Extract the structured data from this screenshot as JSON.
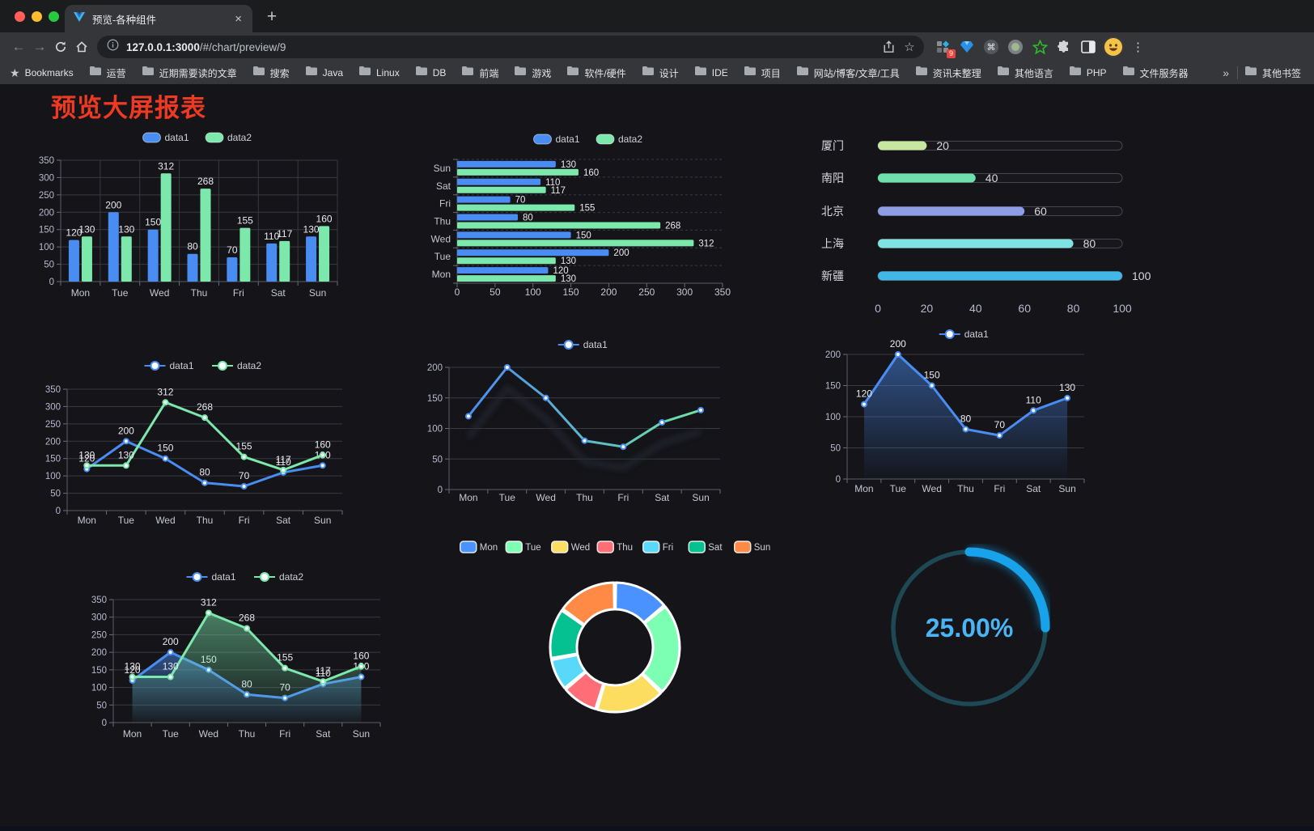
{
  "browser": {
    "tab_title": "预览-各种组件",
    "tab_close": "×",
    "new_tab": "+",
    "back": "←",
    "forward": "→",
    "url_host": "127.0.0.1:3000",
    "url_path": "/#/chart/preview/9",
    "extension_badge": "9",
    "bookmarks_label": "Bookmarks",
    "bookmarks": [
      "运营",
      "近期需要读的文章",
      "搜索",
      "Java",
      "Linux",
      "DB",
      "前端",
      "游戏",
      "软件/硬件",
      "设计",
      "IDE",
      "项目",
      "网站/博客/文章/工具",
      "资讯未整理",
      "其他语言",
      "PHP",
      "文件服务器"
    ],
    "overflow_label": "»",
    "other_bookmarks": "其他书签",
    "menu": "⋮",
    "star": "☆",
    "bookmarks_star": "★"
  },
  "page": {
    "title": "预览大屏报表",
    "title_color": "#ee3a22"
  },
  "chart_data": [
    {
      "id": "c1",
      "type": "bar",
      "orientation": "vertical",
      "categories": [
        "Mon",
        "Tue",
        "Wed",
        "Thu",
        "Fri",
        "Sat",
        "Sun"
      ],
      "series": [
        {
          "name": "data1",
          "color": "#4a8df2",
          "values": [
            120,
            200,
            150,
            80,
            70,
            110,
            130
          ]
        },
        {
          "name": "data2",
          "color": "#7ce8ab",
          "values": [
            130,
            130,
            312,
            268,
            155,
            117,
            160
          ]
        }
      ],
      "ylim": [
        0,
        350
      ],
      "yticks": [
        0,
        50,
        100,
        150,
        200,
        250,
        300,
        350
      ],
      "legend_position": "top",
      "value_labels": true,
      "grid": true
    },
    {
      "id": "c2",
      "type": "bar",
      "orientation": "horizontal",
      "categories": [
        "Mon",
        "Tue",
        "Wed",
        "Thu",
        "Fri",
        "Sat",
        "Sun"
      ],
      "categories_top_to_bottom": [
        "Sun",
        "Sat",
        "Fri",
        "Thu",
        "Wed",
        "Tue",
        "Mon"
      ],
      "series": [
        {
          "name": "data1",
          "color": "#4a8df2",
          "values": [
            120,
            200,
            150,
            80,
            70,
            110,
            130
          ]
        },
        {
          "name": "data2",
          "color": "#7ce8ab",
          "values": [
            130,
            130,
            312,
            268,
            155,
            117,
            160
          ]
        }
      ],
      "xlim": [
        0,
        350
      ],
      "xticks": [
        0,
        50,
        100,
        150,
        200,
        250,
        300,
        350
      ],
      "legend_position": "top",
      "value_labels": true
    },
    {
      "id": "c3",
      "type": "progress-bars",
      "rows": [
        {
          "label": "厦门",
          "value": 20,
          "color": "#c6e7a0"
        },
        {
          "label": "南阳",
          "value": 40,
          "color": "#6fe0ac"
        },
        {
          "label": "北京",
          "value": 60,
          "color": "#8f9ce6"
        },
        {
          "label": "上海",
          "value": 80,
          "color": "#7fe3e3"
        },
        {
          "label": "新疆",
          "value": 100,
          "color": "#41b7e8"
        }
      ],
      "xlim": [
        0,
        100
      ],
      "xticks": [
        0,
        20,
        40,
        60,
        80,
        100
      ]
    },
    {
      "id": "c4",
      "type": "line",
      "categories": [
        "Mon",
        "Tue",
        "Wed",
        "Thu",
        "Fri",
        "Sat",
        "Sun"
      ],
      "series": [
        {
          "name": "data1",
          "color": "#4a8df2",
          "values": [
            120,
            200,
            150,
            80,
            70,
            110,
            130
          ]
        },
        {
          "name": "data2",
          "color": "#7ce8ab",
          "values": [
            130,
            130,
            312,
            268,
            155,
            117,
            160
          ]
        }
      ],
      "ylim": [
        0,
        350
      ],
      "yticks": [
        0,
        50,
        100,
        150,
        200,
        250,
        300,
        350
      ],
      "legend_position": "top",
      "value_labels": true,
      "markers": true
    },
    {
      "id": "c5",
      "type": "line",
      "categories": [
        "Mon",
        "Tue",
        "Wed",
        "Thu",
        "Fri",
        "Sat",
        "Sun"
      ],
      "series": [
        {
          "name": "data1",
          "gradient": [
            "#4a8df2",
            "#6fe3a2"
          ],
          "values": [
            120,
            200,
            150,
            80,
            70,
            110,
            130
          ]
        }
      ],
      "ylim": [
        0,
        200
      ],
      "yticks": [
        0,
        50,
        100,
        150,
        200
      ],
      "legend_position": "top",
      "value_labels": false,
      "markers": true,
      "shadow": true
    },
    {
      "id": "c6",
      "type": "line",
      "categories": [
        "Mon",
        "Tue",
        "Wed",
        "Thu",
        "Fri",
        "Sat",
        "Sun"
      ],
      "series": [
        {
          "name": "data1",
          "color": "#4a8df2",
          "area": true,
          "values": [
            120,
            200,
            150,
            80,
            70,
            110,
            130
          ]
        }
      ],
      "ylim": [
        0,
        200
      ],
      "yticks": [
        0,
        50,
        100,
        150,
        200
      ],
      "legend_position": "top",
      "value_labels": true,
      "markers": true
    },
    {
      "id": "c7",
      "type": "line",
      "categories": [
        "Mon",
        "Tue",
        "Wed",
        "Thu",
        "Fri",
        "Sat",
        "Sun"
      ],
      "series": [
        {
          "name": "data1",
          "color": "#4a8df2",
          "area": true,
          "values": [
            120,
            200,
            150,
            80,
            70,
            110,
            130
          ]
        },
        {
          "name": "data2",
          "color": "#7ce8ab",
          "area": true,
          "values": [
            130,
            130,
            312,
            268,
            155,
            117,
            160
          ]
        }
      ],
      "ylim": [
        0,
        350
      ],
      "yticks": [
        0,
        50,
        100,
        150,
        200,
        250,
        300,
        350
      ],
      "legend_position": "top",
      "value_labels": true,
      "markers": true
    },
    {
      "id": "c8",
      "type": "pie",
      "donut": true,
      "slices": [
        {
          "label": "Mon",
          "value": 120,
          "color": "#4992ff"
        },
        {
          "label": "Tue",
          "value": 200,
          "color": "#7cffb2"
        },
        {
          "label": "Wed",
          "value": 150,
          "color": "#fddd60"
        },
        {
          "label": "Thu",
          "value": 80,
          "color": "#ff6e76"
        },
        {
          "label": "Fri",
          "value": 70,
          "color": "#58d9f9"
        },
        {
          "label": "Sat",
          "value": 110,
          "color": "#05c091"
        },
        {
          "label": "Sun",
          "value": 130,
          "color": "#ff8a45"
        }
      ],
      "legend_position": "top"
    },
    {
      "id": "c9",
      "type": "gauge",
      "label": "25.00%",
      "percent": 25,
      "color": "#18a2ea",
      "track_color": "#1e4854",
      "text_color": "#4ab5f4"
    }
  ]
}
